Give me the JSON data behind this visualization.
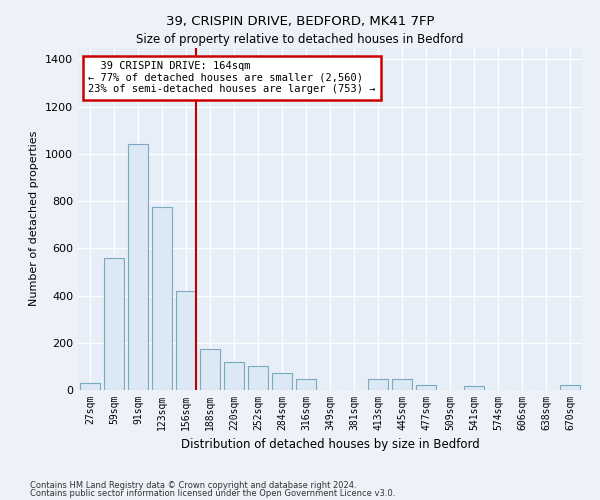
{
  "title1": "39, CRISPIN DRIVE, BEDFORD, MK41 7FP",
  "title2": "Size of property relative to detached houses in Bedford",
  "xlabel": "Distribution of detached houses by size in Bedford",
  "ylabel": "Number of detached properties",
  "annotation_line1": "  39 CRISPIN DRIVE: 164sqm  ",
  "annotation_line2": "← 77% of detached houses are smaller (2,560)",
  "annotation_line3": "23% of semi-detached houses are larger (753) →",
  "bar_color": "#dce8f3",
  "bar_edge_color": "#7aaabf",
  "vline_color": "#bb0000",
  "vline_x": 5,
  "categories": [
    "27sqm",
    "59sqm",
    "91sqm",
    "123sqm",
    "156sqm",
    "188sqm",
    "220sqm",
    "252sqm",
    "284sqm",
    "316sqm",
    "349sqm",
    "381sqm",
    "413sqm",
    "445sqm",
    "477sqm",
    "509sqm",
    "541sqm",
    "574sqm",
    "606sqm",
    "638sqm",
    "670sqm"
  ],
  "values": [
    30,
    560,
    1040,
    775,
    420,
    175,
    120,
    100,
    70,
    45,
    0,
    0,
    45,
    45,
    20,
    0,
    18,
    0,
    0,
    0,
    20
  ],
  "ylim": [
    0,
    1450
  ],
  "yticks": [
    0,
    200,
    400,
    600,
    800,
    1000,
    1200,
    1400
  ],
  "footnote1": "Contains HM Land Registry data © Crown copyright and database right 2024.",
  "footnote2": "Contains public sector information licensed under the Open Government Licence v3.0.",
  "bg_color": "#edf1f8",
  "plot_bg_color": "#edf1f8",
  "inner_bg_color": "#e8eef8"
}
